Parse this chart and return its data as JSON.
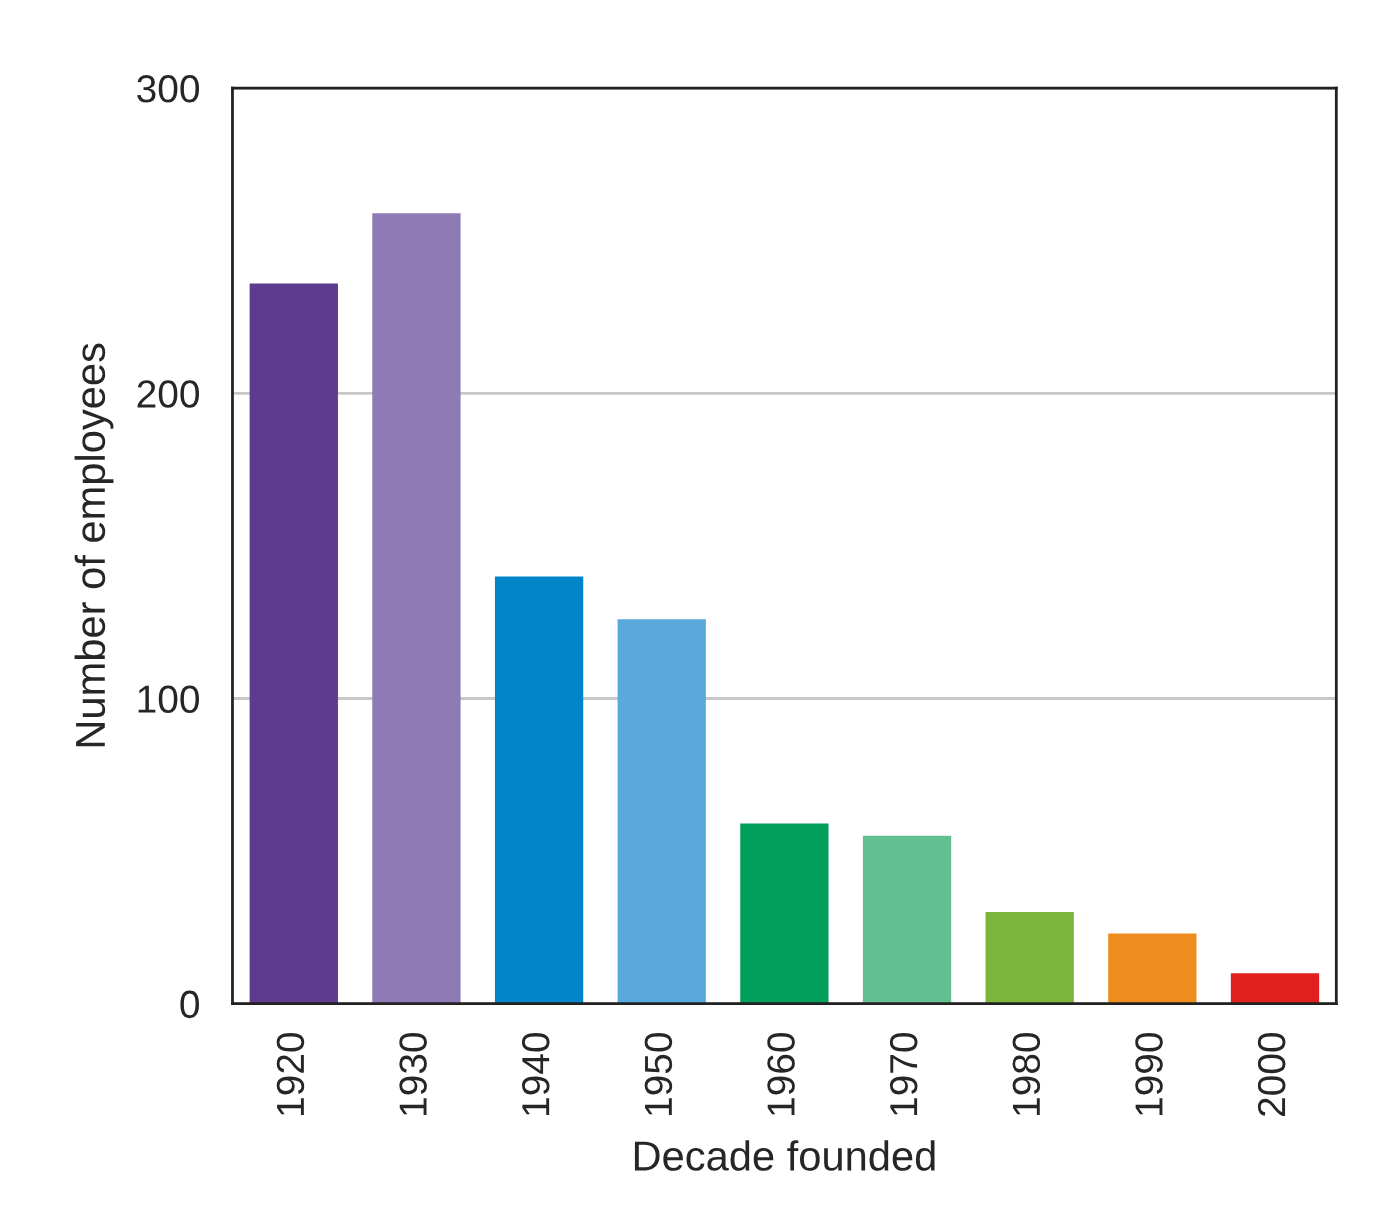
{
  "chart_data": {
    "type": "bar",
    "xlabel": "Decade founded",
    "ylabel": "Number of employees",
    "categories": [
      "1920",
      "1930",
      "1940",
      "1950",
      "1960",
      "1970",
      "1980",
      "1990",
      "2000"
    ],
    "values": [
      236,
      259,
      140,
      126,
      59,
      55,
      30,
      23,
      10
    ],
    "colors": [
      "#5e3b8f",
      "#8e7bb6",
      "#0086c8",
      "#5aa9dd",
      "#00a05a",
      "#62bf8f",
      "#7cb43c",
      "#ee8c1e",
      "#e0201f"
    ],
    "ylim": [
      0,
      300
    ],
    "yticks": [
      0,
      100,
      200,
      300
    ],
    "grid": "y",
    "legend": false
  }
}
